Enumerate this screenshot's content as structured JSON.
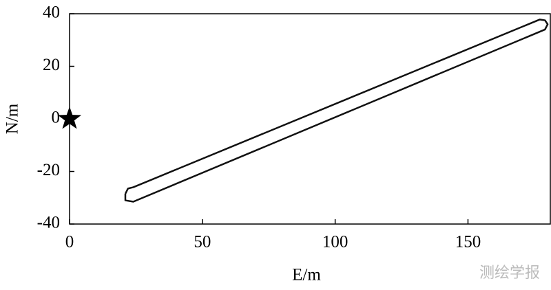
{
  "chart_data": {
    "type": "line",
    "xlabel": "E/m",
    "ylabel": "N/m",
    "xlim": [
      0,
      181
    ],
    "ylim": [
      -40,
      40
    ],
    "xticks": [
      0,
      50,
      100,
      150
    ],
    "yticks": [
      -40,
      -20,
      0,
      20,
      40
    ],
    "series": [
      {
        "type": "line",
        "color": "#111111",
        "x": [
          21,
          22,
          24,
          177,
          179,
          180,
          179,
          24,
          21,
          21
        ],
        "values": [
          -28.5,
          -26.5,
          -26,
          37.8,
          37.5,
          36,
          34,
          -31.5,
          -31,
          -28.5
        ]
      },
      {
        "type": "scatter",
        "marker": "star",
        "color": "#000000",
        "x": [
          0
        ],
        "values": [
          0
        ]
      }
    ],
    "watermark": "测绘学报"
  }
}
